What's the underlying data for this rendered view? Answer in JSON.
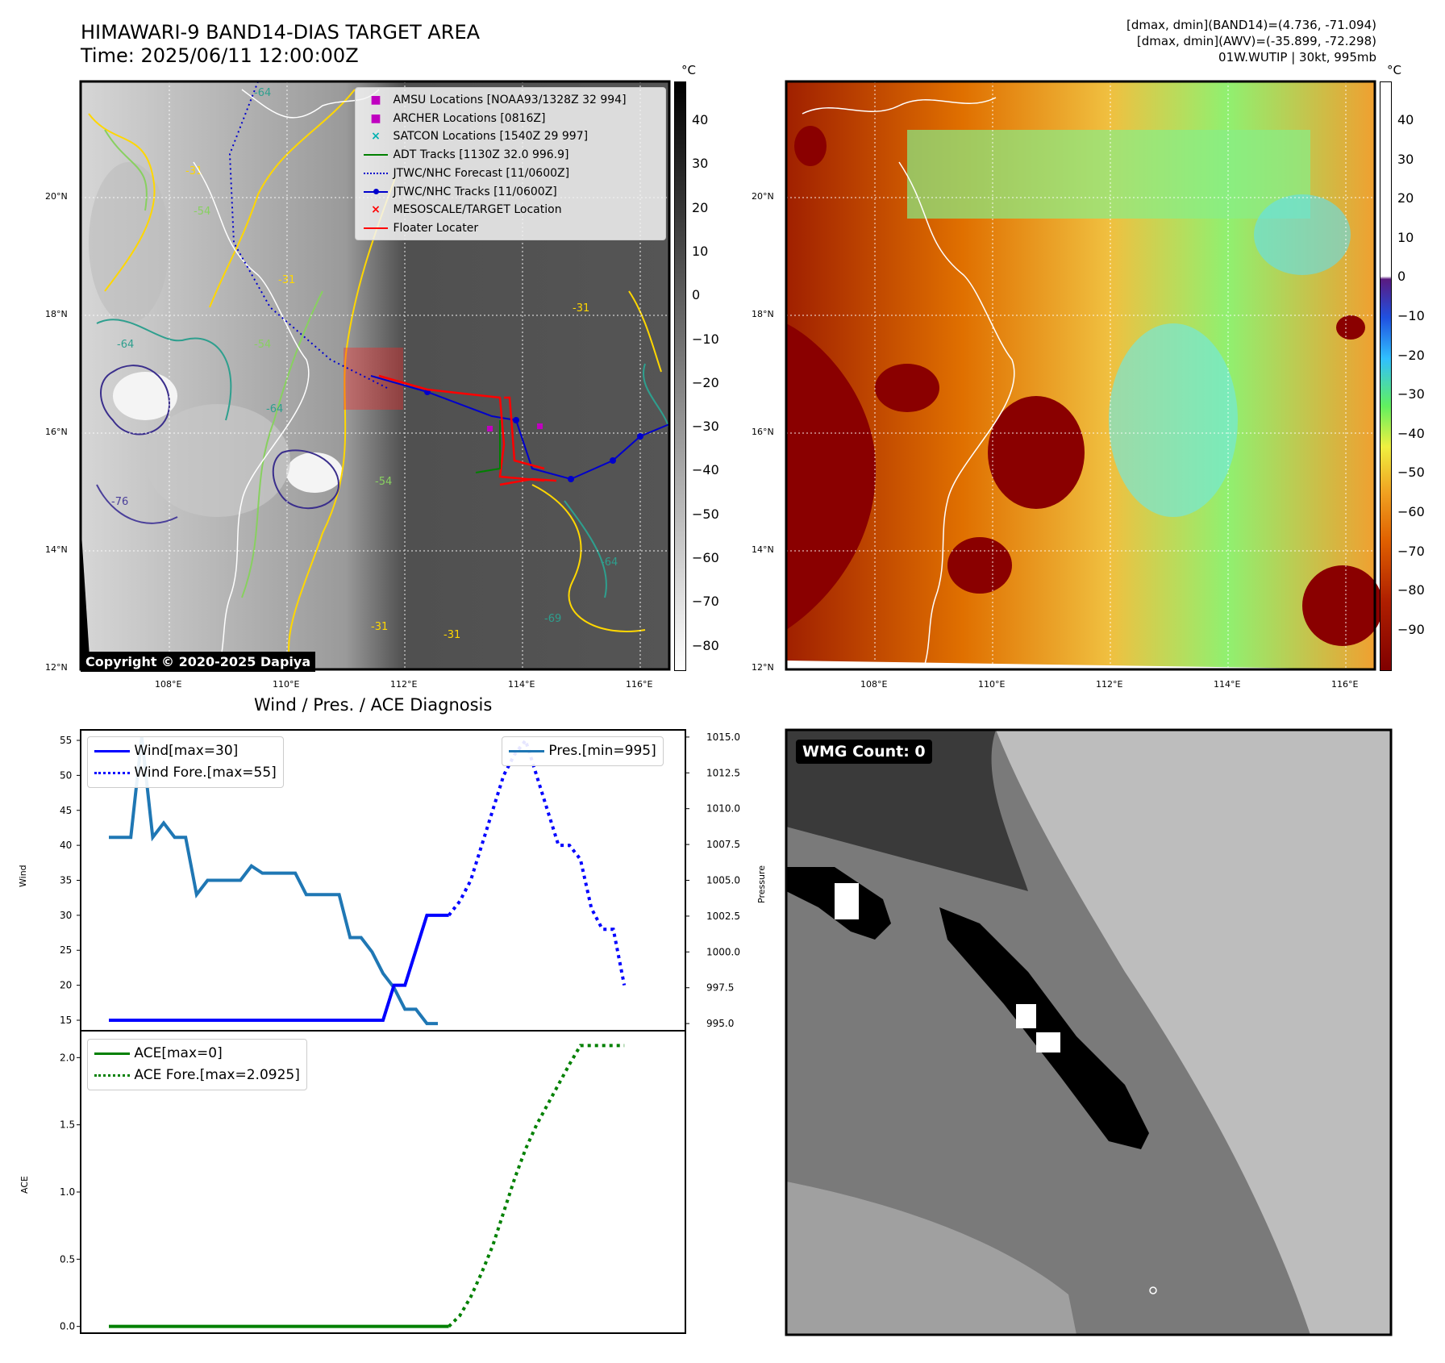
{
  "header": {
    "title_line1": "HIMAWARI-9 BAND14-DIAS TARGET AREA",
    "title_line2": "Time: 2025/06/11 12:00:00Z",
    "right_line1": "[dmax, dmin](BAND14)=(4.736, -71.094)",
    "right_line2": "[dmax, dmin](AWV)=(-35.899, -72.298)",
    "right_line3": "01W.WUTIP | 30kt, 995mb"
  },
  "map_axes": {
    "lat_labels": [
      "20°N",
      "18°N",
      "16°N",
      "14°N",
      "12°N"
    ],
    "lon_labels": [
      "108°E",
      "110°E",
      "112°E",
      "114°E",
      "116°E"
    ]
  },
  "colors": {
    "wind": "#0000ff",
    "pressure": "#1f77b4",
    "ace": "#008000",
    "jtwc": "#0000cc",
    "floater": "#ff0000",
    "adt": "#008000",
    "amsu": "#c000c0",
    "satcon": "#00b0b0"
  },
  "panel_tl": {
    "watermark": "Copyright © 2020-2025 Dapiya",
    "colorbar_unit": "°C",
    "colorbar_ticks": [
      "40",
      "30",
      "20",
      "10",
      "0",
      "−10",
      "−20",
      "−30",
      "−40",
      "−50",
      "−60",
      "−70",
      "−80"
    ],
    "contour_labels": [
      "-64",
      "-31",
      "-54",
      "-64",
      "-76",
      "-31",
      "-54",
      "-64",
      "-31",
      "-54",
      "-64",
      "-31",
      "-31",
      "-69"
    ],
    "legend": [
      {
        "label": "AMSU Locations [NOAA93/1328Z 32 994]",
        "icon": "square-marker"
      },
      {
        "label": "ARCHER Locations [0816Z]",
        "icon": "square-marker"
      },
      {
        "label": "SATCON Locations [1540Z 29 997]",
        "icon": "x-marker"
      },
      {
        "label": "ADT Tracks [1130Z 32.0 996.9]",
        "icon": "solid-line"
      },
      {
        "label": "JTWC/NHC Forecast [11/0600Z]",
        "icon": "dotted-line"
      },
      {
        "label": "JTWC/NHC Tracks [11/0600Z]",
        "icon": "line-with-dots"
      },
      {
        "label": "MESOSCALE/TARGET Location",
        "icon": "x-marker"
      },
      {
        "label": "Floater Locater",
        "icon": "solid-line"
      }
    ]
  },
  "panel_tr": {
    "colorbar_unit": "°C",
    "colorbar_ticks": [
      "40",
      "30",
      "20",
      "10",
      "0",
      "−10",
      "−20",
      "−30",
      "−40",
      "−50",
      "−60",
      "−70",
      "−80",
      "−90"
    ]
  },
  "panel_br": {
    "count_label": "WMG Count: 0"
  },
  "chart_data": [
    {
      "type": "line",
      "title": "Wind / Pres. / ACE Diagnosis",
      "ylabel": "Wind",
      "y2label": "Pressure",
      "ylim": [
        13.5,
        56.5
      ],
      "y2lim": [
        994.5,
        1015.5
      ],
      "yticks": [
        "55",
        "50",
        "45",
        "40",
        "35",
        "30",
        "25",
        "20",
        "15"
      ],
      "y2ticks": [
        "1015.0",
        "1012.5",
        "1010.0",
        "1007.5",
        "1005.0",
        "1002.5",
        "1000.0",
        "997.5",
        "995.0"
      ],
      "series": [
        {
          "name": "Wind[max=30]",
          "axis": "left",
          "style": "solid",
          "values": [
            15,
            15,
            15,
            15,
            15,
            15,
            15,
            15,
            15,
            15,
            15,
            15,
            15,
            15,
            15,
            15,
            15,
            15,
            15,
            15,
            15,
            15,
            15,
            15,
            15,
            15,
            20,
            20,
            25,
            30,
            30,
            30
          ]
        },
        {
          "name": "Wind Fore.[max=55]",
          "axis": "left",
          "style": "dotted",
          "x_start": 31,
          "values": [
            30,
            32,
            35,
            40,
            45,
            50,
            53,
            55,
            50,
            45,
            40,
            40,
            38,
            31,
            28,
            28,
            20
          ]
        },
        {
          "name": "Pres.[min=995]",
          "axis": "right",
          "style": "solid",
          "values": [
            1008,
            1008,
            1008,
            1015,
            1008,
            1009,
            1008,
            1008,
            1004,
            1005,
            1005,
            1005,
            1005,
            1006,
            1005.5,
            1005.5,
            1005.5,
            1005.5,
            1004,
            1004,
            1004,
            1004,
            1001,
            1001,
            1000,
            998.5,
            997.5,
            996,
            996,
            995,
            995
          ]
        }
      ]
    },
    {
      "type": "line",
      "ylabel": "ACE",
      "ylim": [
        -0.05,
        2.2
      ],
      "yticks": [
        "2.0",
        "1.5",
        "1.0",
        "0.5",
        "0.0"
      ],
      "series": [
        {
          "name": "ACE[max=0]",
          "style": "solid",
          "values": [
            0,
            0,
            0,
            0,
            0,
            0,
            0,
            0,
            0,
            0,
            0,
            0,
            0,
            0,
            0,
            0,
            0,
            0,
            0,
            0,
            0,
            0,
            0,
            0,
            0,
            0,
            0,
            0,
            0,
            0,
            0,
            0
          ]
        },
        {
          "name": "ACE Fore.[max=2.0925]",
          "style": "dotted",
          "x_start": 31,
          "values": [
            0,
            0.08,
            0.22,
            0.4,
            0.6,
            0.85,
            1.1,
            1.32,
            1.5,
            1.65,
            1.8,
            1.95,
            2.09,
            2.09,
            2.09,
            2.09,
            2.09
          ]
        }
      ]
    }
  ]
}
